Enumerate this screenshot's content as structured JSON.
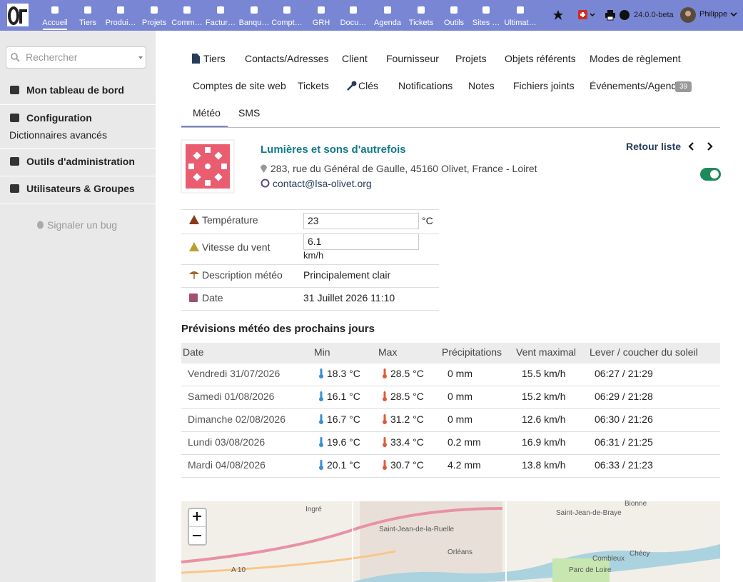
{
  "top_menu": {
    "items": [
      "Accueil",
      "Tiers",
      "Produi…",
      "Projets",
      "Comm…",
      "Factur…",
      "Banqu…",
      "Compt…",
      "GRH",
      "Docu…",
      "Agenda",
      "Tickets",
      "Outils",
      "Sites …",
      "Ultimat…"
    ],
    "version": "24.0.0-beta",
    "user": "Philippe"
  },
  "sidebar": {
    "search_placeholder": "Rechercher",
    "items": [
      "Mon tableau de bord",
      "Configuration",
      "Outils d'administration",
      "Utilisateurs & Groupes"
    ],
    "sub_item": "Dictionnaires avancés",
    "bug_link": "Signaler un bug"
  },
  "tabs": {
    "rows": [
      [
        "Tiers",
        "Contacts/Adresses",
        "Client",
        "Fournisseur",
        "Projets",
        "Objets référents",
        "Modes de règlement"
      ],
      [
        "Comptes de site web",
        "Tickets",
        "Clés",
        "Notifications",
        "Notes",
        "Fichiers joints",
        "Événements/Agenda"
      ],
      [
        "Météo",
        "SMS"
      ]
    ],
    "agenda_badge": 39
  },
  "company": {
    "name": "Lumières et sons d'autrefois",
    "address": "283, rue du Général de Gaulle, 45160 Olivet, France - Loiret",
    "email": "contact@lsa-olivet.org",
    "back_link": "Retour liste"
  },
  "fields": [
    {
      "label": "Température",
      "value": "23",
      "unit": "°C"
    },
    {
      "label": "Vitesse du vent",
      "value": "6.1",
      "unit": "km/h"
    },
    {
      "label": "Description météo",
      "value": "Principalement clair"
    },
    {
      "label": "Date",
      "value": "31 Juillet 2026 11:10"
    }
  ],
  "forecast": {
    "title": "Prévisions météo des prochains jours",
    "columns": [
      "Date",
      "Min",
      "Max",
      "Précipitations",
      "Vent maximal",
      "Lever / coucher du soleil"
    ],
    "rows": [
      [
        "Vendredi 31/07/2026",
        "18.3 °C",
        "28.5 °C",
        "0 mm",
        "15.5 km/h",
        "06:27 / 21:29"
      ],
      [
        "Samedi 01/08/2026",
        "16.1 °C",
        "28.5 °C",
        "0 mm",
        "15.2 km/h",
        "06:29 / 21:28"
      ],
      [
        "Dimanche 02/08/2026",
        "16.7 °C",
        "31.2 °C",
        "0 mm",
        "12.6 km/h",
        "06:30 / 21:26"
      ],
      [
        "Lundi 03/08/2026",
        "19.6 °C",
        "33.4 °C",
        "0.2 mm",
        "16.9 km/h",
        "06:31 / 21:25"
      ],
      [
        "Mardi 04/08/2026",
        "20.1 °C",
        "30.7 °C",
        "4.2 mm",
        "13.8 km/h",
        "06:33 / 21:23"
      ]
    ]
  },
  "map": {
    "labels": [
      "Ingré",
      "Saint-Jean-de-la-Ruelle",
      "Orléans",
      "Saint-Jean-de-Braye",
      "Bionne",
      "Combleux",
      "Chécy",
      "A 10",
      "Parc de Loire"
    ]
  }
}
